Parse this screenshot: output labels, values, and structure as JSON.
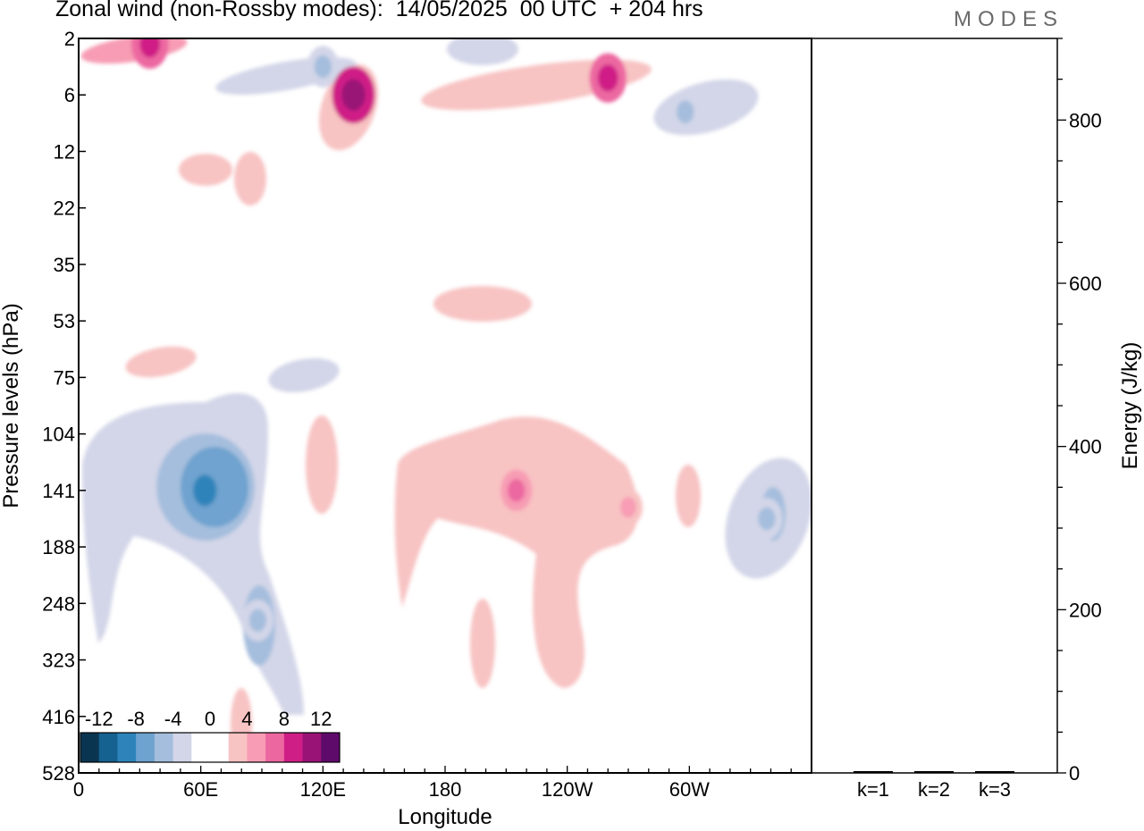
{
  "header": {
    "title": "Zonal wind (non-Rossby modes):  14/05/2025  00 UTC  + 204 hrs",
    "logo": "MODES"
  },
  "chart_data": [
    {
      "type": "heatmap",
      "title": "Zonal wind (non-Rossby modes):  14/05/2025  00 UTC  + 204 hrs",
      "xlabel": "Longitude",
      "ylabel": "Pressure levels (hPa)",
      "x_ticks": [
        {
          "lon": 0,
          "label": "0"
        },
        {
          "lon": 60,
          "label": "60E"
        },
        {
          "lon": 120,
          "label": "120E"
        },
        {
          "lon": 180,
          "label": "180"
        },
        {
          "lon": 240,
          "label": "120W"
        },
        {
          "lon": 300,
          "label": "60W"
        }
      ],
      "xlim": [
        0,
        360
      ],
      "y_levels": [
        "2",
        "6",
        "12",
        "22",
        "35",
        "53",
        "75",
        "104",
        "141",
        "188",
        "248",
        "323",
        "416",
        "528"
      ],
      "colorbar": {
        "labels": [
          "-12",
          "-8",
          "-4",
          "0",
          "4",
          "8",
          "12"
        ],
        "colors": [
          "#0a3550",
          "#15618f",
          "#2e84ba",
          "#6fa3cf",
          "#a5bedd",
          "#d3d6e8",
          "#ffffff",
          "#ffffff",
          "#f8c3c3",
          "#f79cb4",
          "#ec67a0",
          "#cf1f86",
          "#991276",
          "#5e0a6b"
        ]
      },
      "features": [
        {
          "name": "strong easterly core",
          "lon": 62,
          "level_index": 8.0,
          "value": -10
        },
        {
          "name": "easterly core",
          "lon": 88,
          "level_index": 10.3,
          "value": -6
        },
        {
          "name": "easterly core",
          "lon": 338,
          "level_index": 8.5,
          "value": -6
        },
        {
          "name": "stratospheric easterly",
          "lon": 120,
          "level_index": 0.5,
          "value": -6
        },
        {
          "name": "stratospheric easterly",
          "lon": 298,
          "level_index": 1.3,
          "value": -6
        },
        {
          "name": "westerly core",
          "lon": 215,
          "level_index": 8.0,
          "value": 6
        },
        {
          "name": "westerly core",
          "lon": 270,
          "level_index": 8.3,
          "value": 5
        },
        {
          "name": "stratospheric westerly",
          "lon": 135,
          "level_index": 1.0,
          "value": 10
        },
        {
          "name": "stratospheric westerly",
          "lon": 260,
          "level_index": 0.7,
          "value": 8
        },
        {
          "name": "stratospheric westerly",
          "lon": 35,
          "level_index": 0.1,
          "value": 8
        }
      ]
    },
    {
      "type": "bar",
      "ylabel": "Energy (J/kg)",
      "categories": [
        "k=1",
        "k=2",
        "k=3"
      ],
      "values": [
        1,
        0.5,
        0.5
      ],
      "ylim": [
        0,
        900
      ],
      "y_ticks": [
        0,
        200,
        400,
        600,
        800
      ]
    }
  ]
}
